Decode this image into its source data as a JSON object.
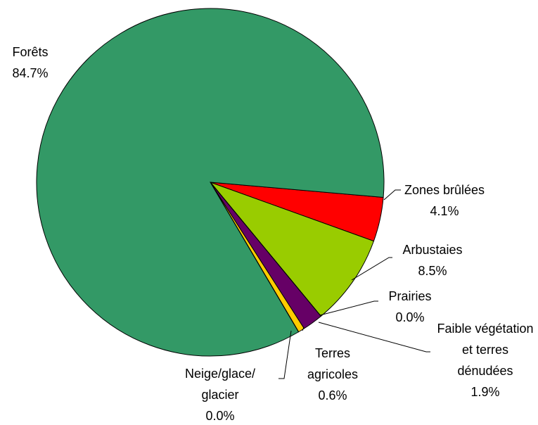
{
  "chart_data": {
    "type": "pie",
    "categories": [
      "Zones brûlées",
      "Arbustaies",
      "Prairies",
      "Faible végétation et terres dénudées",
      "Terres agricoles",
      "Neige/glace/ glacier",
      "Forêts"
    ],
    "values": [
      4.1,
      8.5,
      0.0,
      1.9,
      0.6,
      0.0,
      84.7
    ],
    "value_labels": [
      "4.1%",
      "8.5%",
      "0.0%",
      "1.9%",
      "0.6%",
      "0.0%",
      "84.7%"
    ],
    "colors": [
      "#ff0000",
      "#99cc00",
      "#006633",
      "#660066",
      "#ffcc00",
      "#000000",
      "#339966"
    ]
  }
}
